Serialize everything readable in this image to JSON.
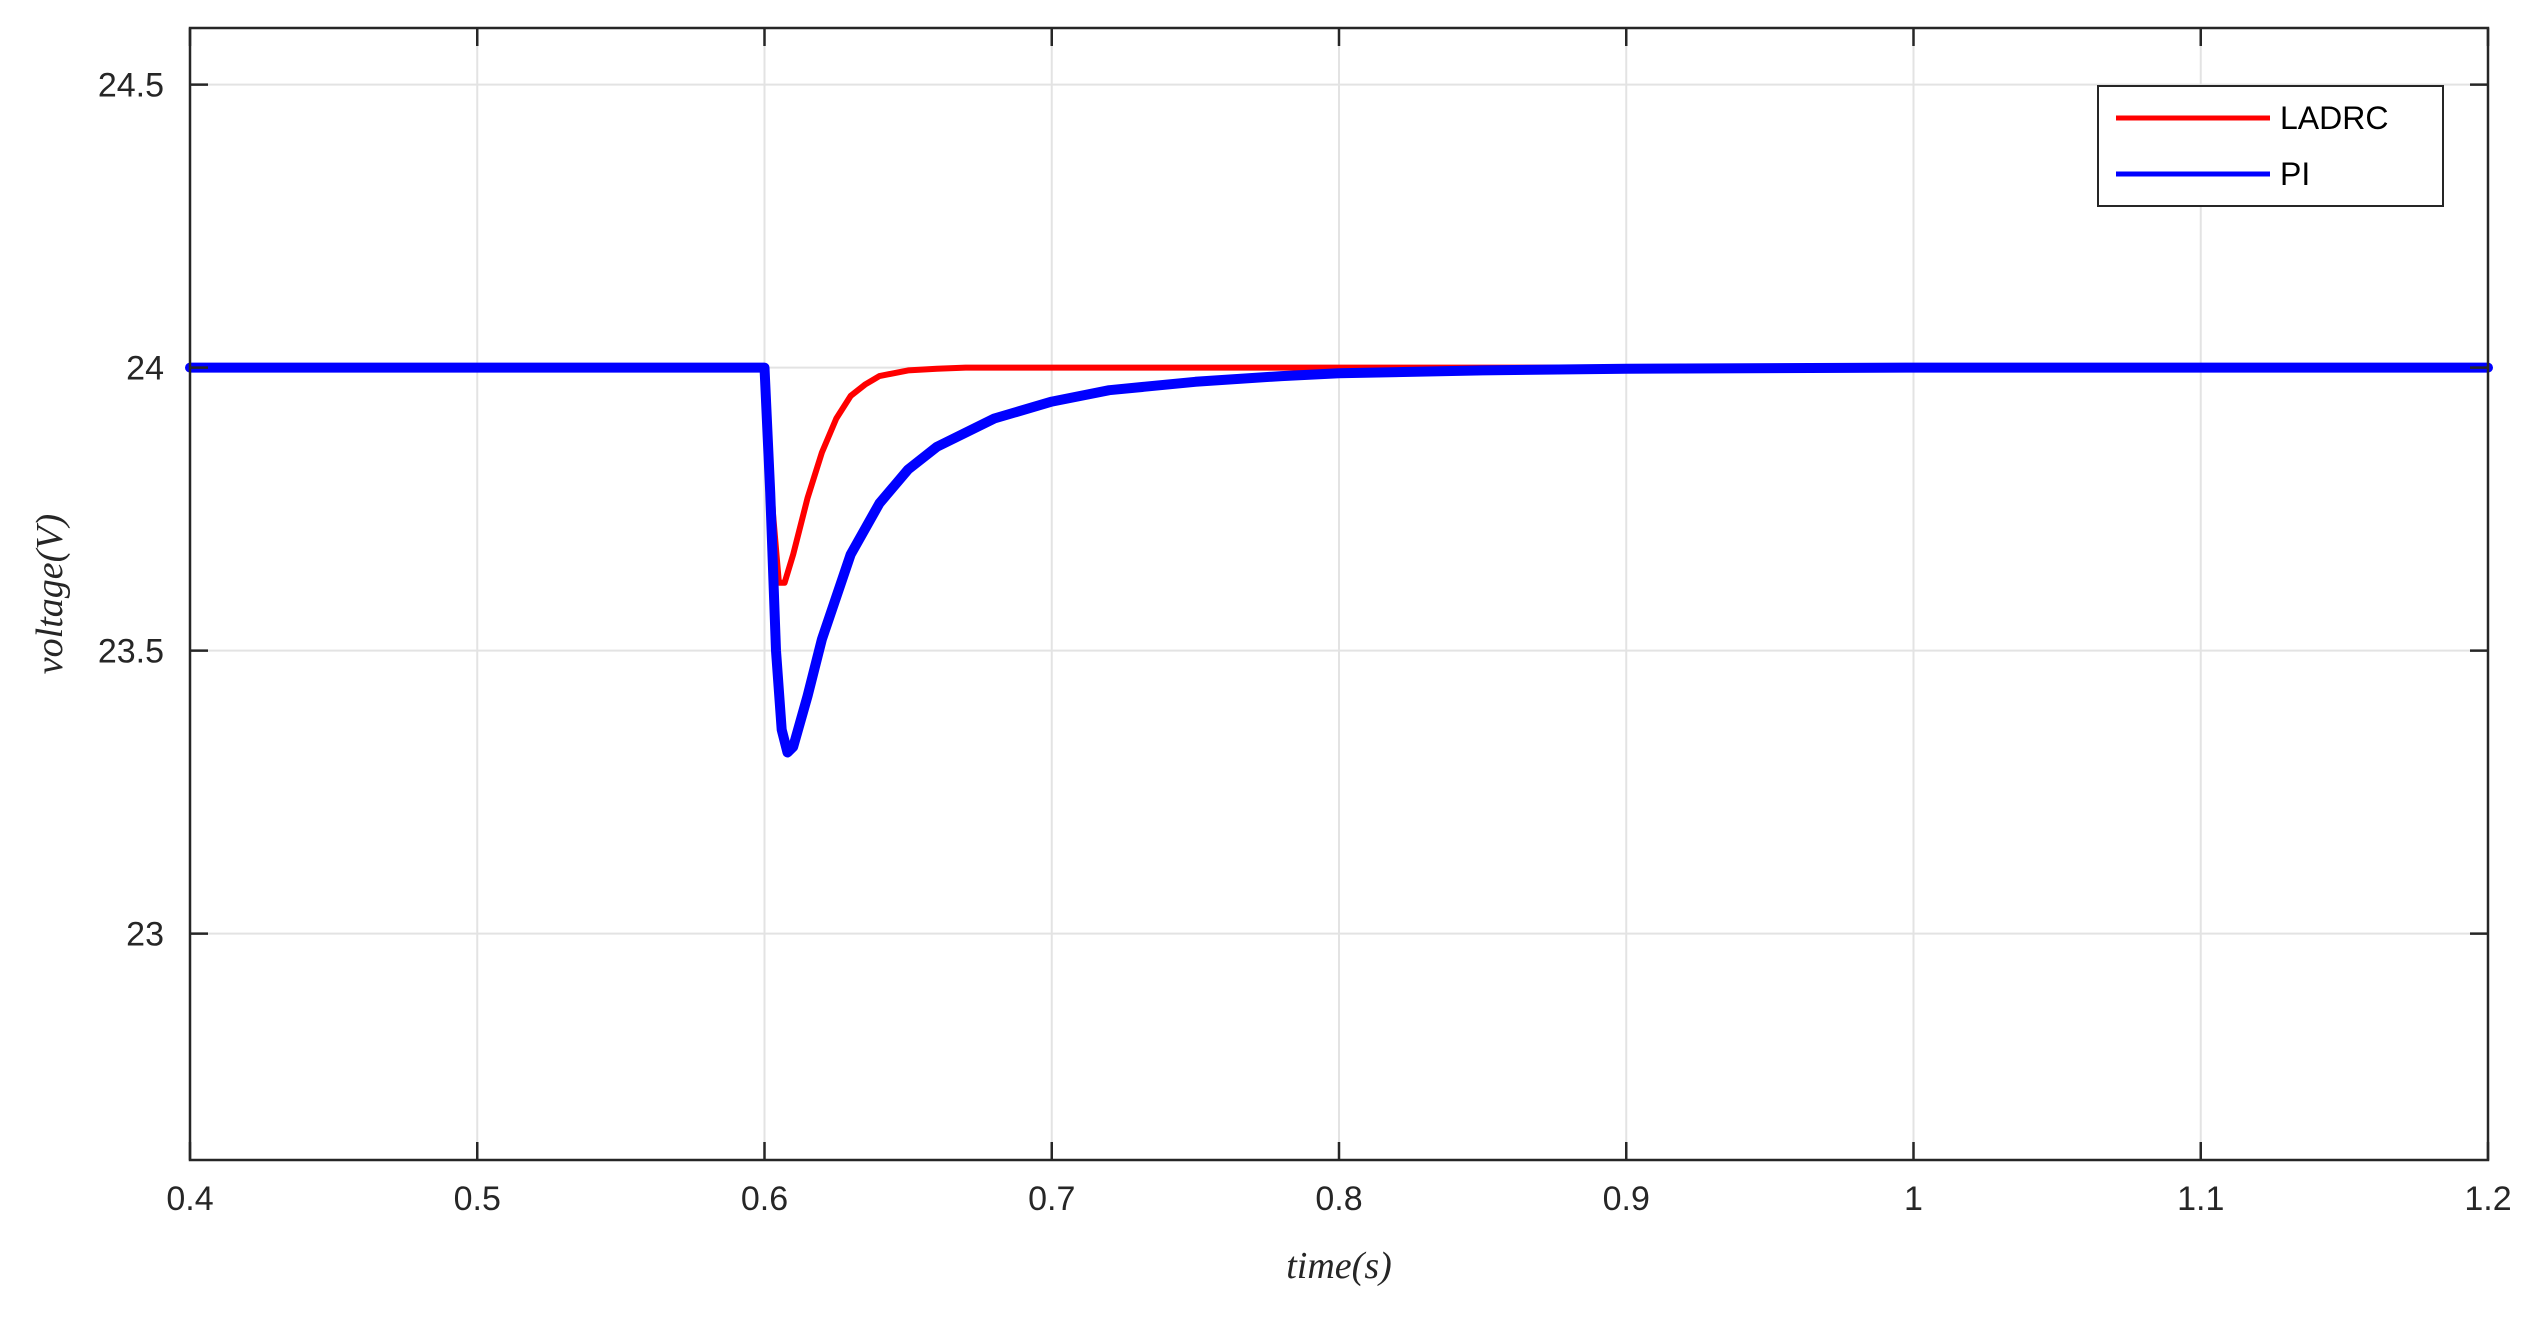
{
  "chart_data": {
    "type": "line",
    "xlabel": "time(s)",
    "ylabel": "voltage(V)",
    "xlim": [
      0.4,
      1.2
    ],
    "ylim": [
      22.6,
      24.6
    ],
    "xticks": [
      0.4,
      0.5,
      0.6,
      0.7,
      0.8,
      0.9,
      1.0,
      1.1,
      1.2
    ],
    "xtick_labels": [
      "0.4",
      "0.5",
      "0.6",
      "0.7",
      "0.8",
      "0.9",
      "1",
      "1.1",
      "1.2"
    ],
    "yticks": [
      23.0,
      23.5,
      24.0,
      24.5
    ],
    "ytick_labels": [
      "23",
      "23.5",
      "24",
      "24.5"
    ],
    "grid": true,
    "legend_position": "top-right",
    "series": [
      {
        "name": "LADRC",
        "color": "#ff0000",
        "x": [
          0.4,
          0.5,
          0.6,
          0.601,
          0.603,
          0.605,
          0.607,
          0.61,
          0.615,
          0.62,
          0.625,
          0.63,
          0.635,
          0.64,
          0.65,
          0.66,
          0.67,
          0.68,
          0.7,
          0.75,
          0.8,
          0.9,
          1.0,
          1.2
        ],
        "y": [
          24.0,
          24.0,
          24.0,
          23.9,
          23.74,
          23.62,
          23.62,
          23.67,
          23.77,
          23.85,
          23.91,
          23.95,
          23.97,
          23.985,
          23.995,
          23.998,
          24.0,
          24.0,
          24.0,
          24.0,
          24.0,
          24.0,
          24.0,
          24.0
        ]
      },
      {
        "name": "PI",
        "color": "#0000ff",
        "x": [
          0.4,
          0.5,
          0.6,
          0.602,
          0.604,
          0.606,
          0.608,
          0.61,
          0.615,
          0.62,
          0.63,
          0.64,
          0.65,
          0.66,
          0.68,
          0.7,
          0.72,
          0.75,
          0.78,
          0.8,
          0.85,
          0.9,
          1.0,
          1.1,
          1.2
        ],
        "y": [
          24.0,
          24.0,
          24.0,
          23.78,
          23.5,
          23.36,
          23.32,
          23.33,
          23.42,
          23.52,
          23.67,
          23.76,
          23.82,
          23.86,
          23.91,
          23.94,
          23.96,
          23.975,
          23.985,
          23.99,
          23.995,
          23.998,
          24.0,
          24.0,
          24.0
        ]
      }
    ]
  }
}
